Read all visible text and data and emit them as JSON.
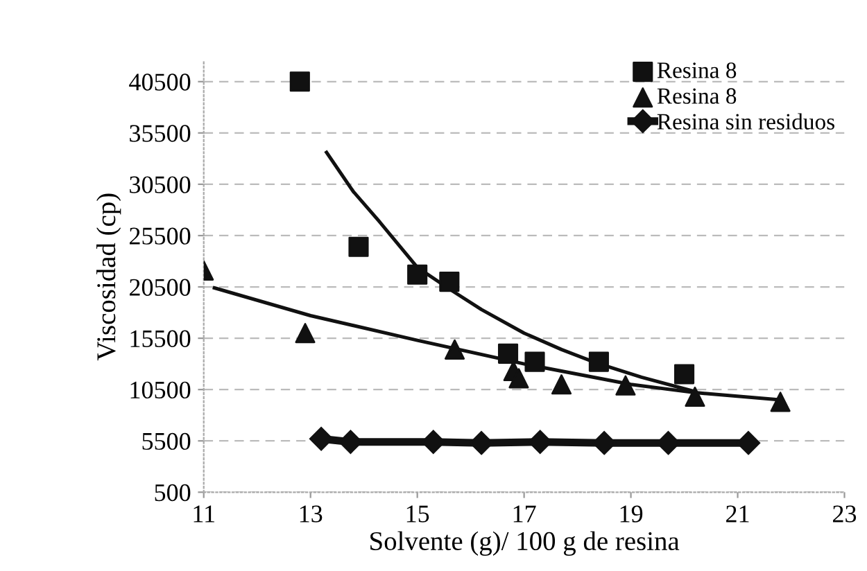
{
  "chart_data": {
    "type": "scatter",
    "xlabel": "Solvente (g)/ 100 g de resina",
    "ylabel": "Viscosidad (cp)",
    "xlim": [
      11,
      23
    ],
    "xticks": [
      11,
      13,
      15,
      17,
      19,
      21,
      23
    ],
    "ylim": [
      500,
      42500
    ],
    "yticks": [
      500,
      5500,
      10500,
      15500,
      20500,
      25500,
      30500,
      35500,
      40500
    ],
    "grid": "y",
    "legend": "top right",
    "series": [
      {
        "name": "Resina 8",
        "marker": "square",
        "color": "#111111",
        "x": [
          12.8,
          13.9,
          15.0,
          15.6,
          16.7,
          17.2,
          18.4,
          20.0
        ],
        "values": [
          40500,
          24400,
          21700,
          21000,
          14000,
          13200,
          13200,
          12000
        ]
      },
      {
        "name": "Resina 8",
        "marker": "triangle",
        "color": "#111111",
        "x": [
          11.0,
          12.9,
          15.7,
          16.8,
          16.9,
          17.7,
          18.9,
          20.2,
          21.8
        ],
        "values": [
          22100,
          16000,
          14400,
          12300,
          11600,
          11000,
          10900,
          9800,
          9300
        ]
      },
      {
        "name": "Resina sin residuos",
        "type": "line",
        "marker": "diamond",
        "color": "#111111",
        "x": [
          13.2,
          13.75,
          15.3,
          16.2,
          17.3,
          18.5,
          19.7,
          21.2
        ],
        "values": [
          5700,
          5400,
          5400,
          5300,
          5400,
          5300,
          5300,
          5300
        ]
      },
      {
        "type": "line",
        "marker": "none",
        "color": "#111111",
        "x": [
          13.3,
          13.8,
          14.3,
          15.0,
          15.6,
          16.2,
          17.0,
          17.7,
          18.35,
          19.2,
          20.2
        ],
        "values": [
          33600,
          29800,
          26800,
          22400,
          20300,
          18300,
          16000,
          14400,
          13100,
          11700,
          10300
        ]
      },
      {
        "type": "line",
        "marker": "none",
        "color": "#111111",
        "x": [
          11.2,
          13,
          15,
          17,
          19,
          20.2,
          21.8
        ],
        "values": [
          20400,
          17700,
          15300,
          13000,
          11000,
          10200,
          9500
        ]
      }
    ]
  }
}
